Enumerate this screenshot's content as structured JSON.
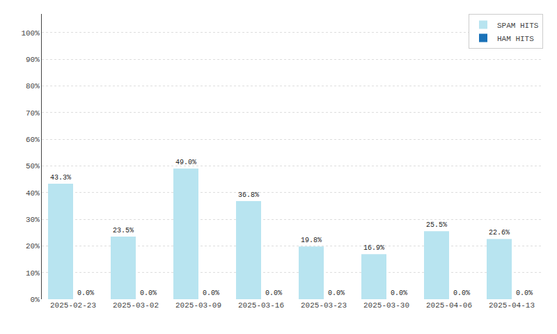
{
  "chart_data": {
    "type": "bar",
    "categories": [
      "2025-02-23",
      "2025-03-02",
      "2025-03-09",
      "2025-03-16",
      "2025-03-23",
      "2025-03-30",
      "2025-04-06",
      "2025-04-13"
    ],
    "series": [
      {
        "name": "SPAM HITS",
        "color": "#b8e4f0",
        "values": [
          43.3,
          23.5,
          49.0,
          36.8,
          19.8,
          16.9,
          25.5,
          22.6
        ],
        "value_labels": [
          "43.3%",
          "23.5%",
          "49.0%",
          "36.8%",
          "19.8%",
          "16.9%",
          "25.5%",
          "22.6%"
        ]
      },
      {
        "name": "HAM HITS",
        "color": "#1a72b8",
        "values": [
          0.0,
          0.0,
          0.0,
          0.0,
          0.0,
          0.0,
          0.0,
          0.0
        ],
        "value_labels": [
          "0.0%",
          "0.0%",
          "0.0%",
          "0.0%",
          "0.0%",
          "0.0%",
          "0.0%",
          "0.0%"
        ]
      }
    ],
    "ylim": [
      0,
      107
    ],
    "yticks": [
      {
        "value": 0,
        "label": "0%"
      },
      {
        "value": 10,
        "label": "10%"
      },
      {
        "value": 20,
        "label": "20%"
      },
      {
        "value": 30,
        "label": "30%"
      },
      {
        "value": 40,
        "label": "40%"
      },
      {
        "value": 50,
        "label": "50%"
      },
      {
        "value": 60,
        "label": "60%"
      },
      {
        "value": 70,
        "label": "70%"
      },
      {
        "value": 80,
        "label": "80%"
      },
      {
        "value": 90,
        "label": "90%"
      },
      {
        "value": 100,
        "label": "100%"
      }
    ],
    "grid": true,
    "legend": "upper right",
    "data_labels": true
  }
}
